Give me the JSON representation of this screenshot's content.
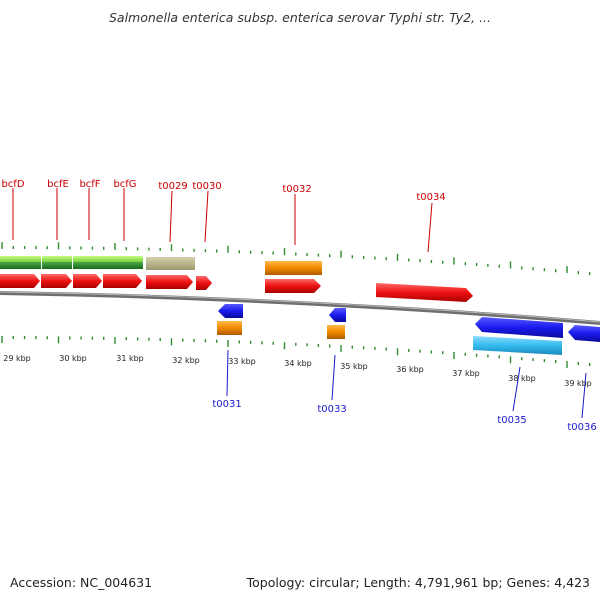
{
  "header": {
    "title": "Salmonella enterica subsp. enterica serovar Typhi str. Ty2, ..."
  },
  "footer": {
    "accession": "Accession: NC_004631",
    "summary": "Topology: circular; Length: 4,791,961 bp; Genes: 4,423"
  },
  "colors": {
    "backbone": "#7a7a7a",
    "tick": "#2e8b2e",
    "top_label": "#cc0000",
    "bottom_label": "#1a1acc",
    "red_feature": "#ee1111",
    "orange_feature": "#f08a00",
    "blue_feature": "#1a1aee",
    "cyan_feature": "#33bbee",
    "lightgreen_feature": "#8ee04a",
    "darkgreen_feature": "#2a8a2a",
    "khaki_feature": "#b8b488"
  },
  "scale_labels": [
    "29 kbp",
    "30 kbp",
    "31 kbp",
    "32 kbp",
    "33 kbp",
    "34 kbp",
    "35 kbp",
    "36 kbp",
    "37 kbp",
    "38 kbp",
    "39 kbp"
  ],
  "top_labels": [
    "bcfD",
    "bcfE",
    "bcfF",
    "bcfG",
    "t0029",
    "t0030",
    "t0032",
    "t0034"
  ],
  "bottom_labels": [
    "t0031",
    "t0033",
    "t0035",
    "t0036"
  ]
}
